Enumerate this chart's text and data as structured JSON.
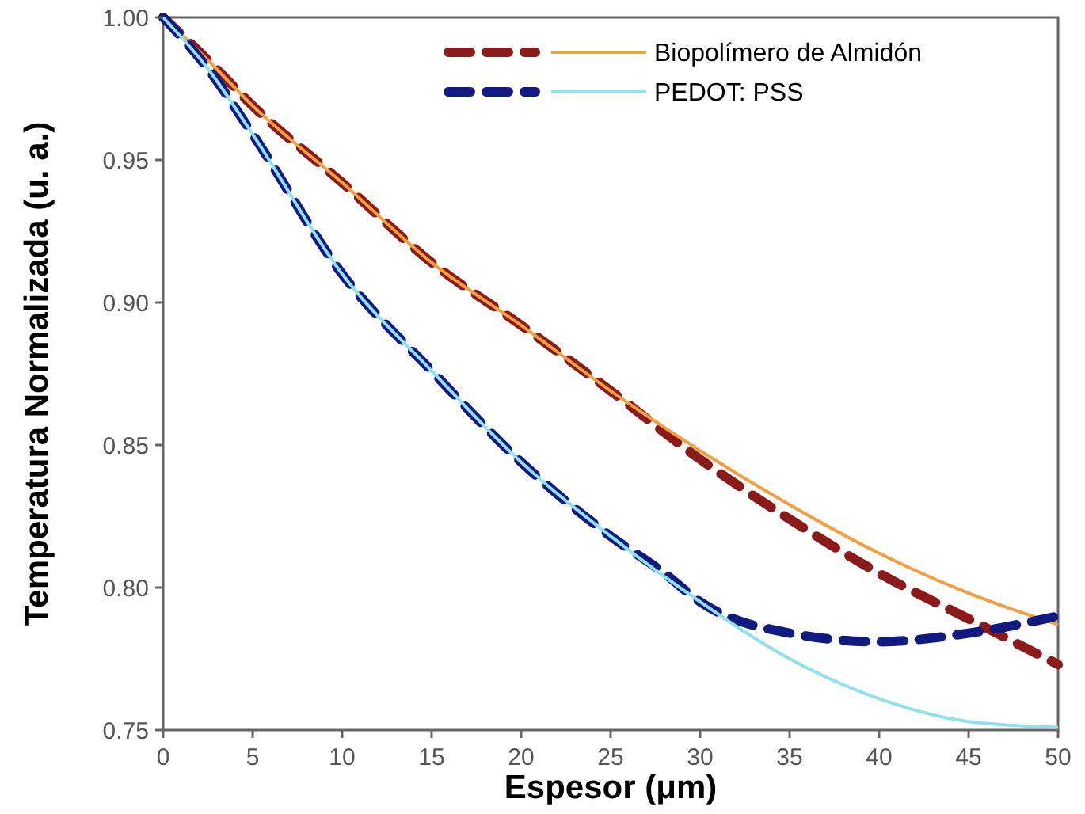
{
  "chart_data": {
    "type": "line",
    "xlabel": "Espesor (μm)",
    "ylabel": "Temperatura Normalizada (u. a.)",
    "x": [
      0,
      2.5,
      5,
      10,
      15,
      20,
      25,
      30,
      35,
      40,
      45,
      50
    ],
    "series": [
      {
        "color": "#8b1a1a",
        "line_style": "dashed",
        "values": [
          1.0,
          0.985,
          0.969,
          0.942,
          0.914,
          0.892,
          0.869,
          0.845,
          0.824,
          0.805,
          0.789,
          0.773
        ]
      },
      {
        "name": "Biopolímero de Almidón",
        "color": "#f0a040",
        "line_style": "solid",
        "values": [
          1.0,
          0.985,
          0.969,
          0.942,
          0.914,
          0.892,
          0.869,
          0.848,
          0.829,
          0.812,
          0.798,
          0.787
        ]
      },
      {
        "color": "#101a80",
        "line_style": "dashed",
        "x": [
          0,
          2.5,
          5,
          10,
          15,
          20,
          25,
          28,
          30,
          35,
          40,
          45,
          50
        ],
        "values": [
          1.0,
          0.982,
          0.959,
          0.91,
          0.876,
          0.844,
          0.818,
          0.805,
          0.795,
          0.784,
          0.781,
          0.784,
          0.79
        ]
      },
      {
        "name": "PEDOT: PSS",
        "color": "#90e0f0",
        "line_style": "solid",
        "values": [
          1.0,
          0.982,
          0.959,
          0.91,
          0.876,
          0.844,
          0.818,
          0.795,
          0.775,
          0.761,
          0.753,
          0.751
        ]
      }
    ],
    "xlim": [
      0,
      50
    ],
    "xticks": [
      0,
      5,
      10,
      15,
      20,
      25,
      30,
      35,
      40,
      45,
      50
    ],
    "ylim": [
      0.75,
      1.0
    ],
    "yticks": [
      {
        "value": 0.75,
        "label": "0.75"
      },
      {
        "value": 0.8,
        "label": "0.80"
      },
      {
        "value": 0.85,
        "label": "0.85"
      },
      {
        "value": 0.9,
        "label": "0.90"
      },
      {
        "value": 0.95,
        "label": "0.95"
      },
      {
        "value": 1.0,
        "label": "1.00"
      }
    ],
    "grid": false,
    "legend": "top right"
  }
}
